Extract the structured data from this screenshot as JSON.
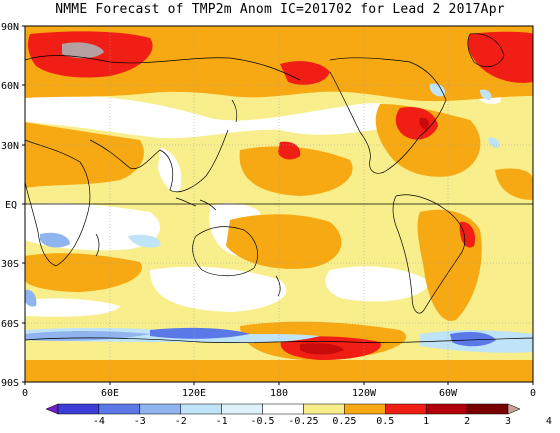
{
  "title": "NMME Forecast of TMP2m Anom IC=201702 for Lead 2 2017Apr",
  "lat_labels": [
    "90N",
    "60N",
    "30N",
    "EQ",
    "30S",
    "60S",
    "90S"
  ],
  "lon_labels": [
    "0",
    "60E",
    "120E",
    "180",
    "120W",
    "60W",
    "0"
  ],
  "colorbar": {
    "labels": [
      "-4",
      "-3",
      "-2",
      "-1",
      "-0.5",
      "-0.25",
      "0.25",
      "0.5",
      "1",
      "2",
      "3",
      "4"
    ],
    "colors": [
      "#6f1fc9",
      "#3c3cd6",
      "#5a78e6",
      "#8fb4f0",
      "#bfe3f7",
      "#def2fa",
      "#ffffff",
      "#f8ef8c",
      "#f7a914",
      "#f01e14",
      "#b4000a",
      "#780000",
      "#c8a096"
    ]
  },
  "anomaly_colors": {
    "strong_warm": "#c80a0a",
    "warm": "#f01e14",
    "moderate": "#f7a914",
    "weak": "#f8ef8c",
    "neutral": "#ffffff",
    "cool": "#bfe3f7",
    "cold": "#8fb4f0",
    "very_cold": "#5a78e6",
    "peak": "#b4a0a0"
  }
}
